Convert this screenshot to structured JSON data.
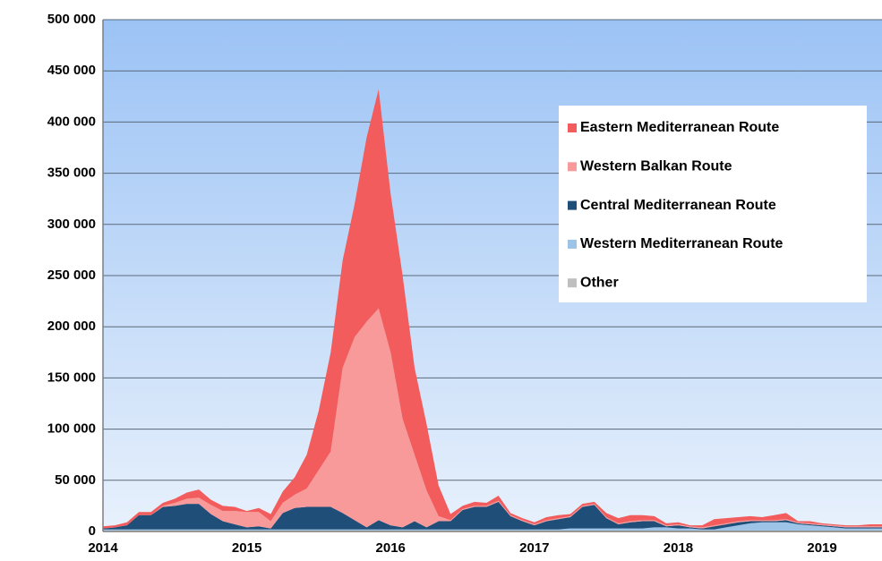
{
  "chart_data": {
    "type": "stacked_area",
    "categories": [
      "2014",
      null,
      null,
      null,
      null,
      null,
      null,
      null,
      null,
      null,
      null,
      null,
      "2015",
      null,
      null,
      null,
      null,
      null,
      null,
      null,
      null,
      null,
      null,
      null,
      "2016",
      null,
      null,
      null,
      null,
      null,
      null,
      null,
      null,
      null,
      null,
      null,
      "2017",
      null,
      null,
      null,
      null,
      null,
      null,
      null,
      null,
      null,
      null,
      null,
      "2018",
      null,
      null,
      null,
      null,
      null,
      null,
      null,
      null,
      null,
      null,
      null,
      "2019",
      null,
      null,
      null,
      null,
      null
    ],
    "ylim": [
      0,
      500000
    ],
    "yticks": [
      0,
      {
        "value": 50000,
        "label": "50 000"
      },
      {
        "value": 100000,
        "label": "100 000"
      },
      {
        "value": 150000,
        "label": "150 000"
      },
      {
        "value": 200000,
        "label": "200 000"
      },
      {
        "value": 250000,
        "label": "250 000"
      },
      {
        "value": 300000,
        "label": "300 000"
      },
      {
        "value": 350000,
        "label": "350 000"
      },
      {
        "value": 400000,
        "label": "400 000"
      },
      {
        "value": 450000,
        "label": "450 000"
      },
      {
        "value": 500000,
        "label": "500 000"
      }
    ],
    "grid": true,
    "legend": "upper right",
    "series": [
      {
        "name": "Eastern Mediterranean Route",
        "color": "#f25c5c",
        "values": [
          2000,
          2000,
          3000,
          3000,
          3000,
          3000,
          4000,
          6000,
          8000,
          5000,
          5000,
          4000,
          1000,
          4000,
          7000,
          11000,
          17000,
          33000,
          58000,
          97000,
          105000,
          130000,
          180000,
          214000,
          155000,
          140000,
          85000,
          65000,
          30000,
          6000,
          3000,
          4000,
          3000,
          5000,
          2000,
          2000,
          2000,
          3000,
          3000,
          2000,
          2000,
          2000,
          4000,
          5000,
          6000,
          5000,
          4000,
          2000,
          2000,
          1000,
          2000,
          6000,
          5000,
          4000,
          4000,
          3000,
          5000,
          6000,
          1000,
          2000,
          1000,
          1000,
          1000,
          1000,
          2000,
          2000
        ]
      },
      {
        "name": "Western Balkan Route",
        "color": "#f89a9a",
        "values": [
          0,
          0,
          0,
          0,
          0,
          1000,
          3000,
          5000,
          6000,
          9000,
          10000,
          13000,
          15000,
          14000,
          7000,
          10000,
          13000,
          18000,
          36000,
          54000,
          142000,
          179000,
          201000,
          207000,
          169000,
          106000,
          65000,
          36000,
          5000,
          1000,
          1000,
          1000,
          1000,
          1000,
          1000,
          1000,
          1000,
          1000,
          1000,
          1000,
          1000,
          1000,
          1000,
          1000,
          1000,
          1000,
          1000,
          1000,
          1000,
          1000,
          1000,
          1000,
          1000,
          1000,
          1000,
          1000,
          1000,
          1000,
          1000,
          1000,
          1000,
          1000,
          1000,
          1000,
          1000,
          1000
        ]
      },
      {
        "name": "Central Mediterranean Route",
        "color": "#1f4e79",
        "values": [
          1000,
          2000,
          4000,
          14000,
          14000,
          22000,
          23000,
          25000,
          25000,
          15000,
          8000,
          5000,
          2000,
          3000,
          1000,
          16000,
          21000,
          22000,
          22000,
          22000,
          16000,
          9000,
          2000,
          9000,
          4000,
          2000,
          8000,
          2000,
          8000,
          8000,
          19000,
          22000,
          22000,
          27000,
          13000,
          8000,
          4000,
          8000,
          10000,
          11000,
          21000,
          23000,
          10000,
          4000,
          6000,
          7000,
          6000,
          1000,
          3000,
          1000,
          1000,
          3000,
          3000,
          3000,
          2000,
          1000,
          1000,
          2000,
          1000,
          1000,
          1000,
          1000,
          1000,
          1000,
          1000,
          1000
        ]
      },
      {
        "name": "Western Mediterranean Route",
        "color": "#9dc3e6",
        "values": [
          1000,
          1000,
          1000,
          1000,
          1000,
          1000,
          1000,
          1000,
          1000,
          1000,
          1000,
          1000,
          1000,
          1000,
          1000,
          1000,
          1000,
          1000,
          1000,
          1000,
          1000,
          1000,
          1000,
          1000,
          1000,
          1000,
          1000,
          1000,
          1000,
          1000,
          1000,
          1000,
          1000,
          1000,
          1000,
          1000,
          1000,
          1000,
          1000,
          2000,
          2000,
          2000,
          2000,
          2000,
          2000,
          2000,
          3000,
          3000,
          2000,
          2000,
          1000,
          1000,
          3000,
          5000,
          7000,
          8000,
          8000,
          8000,
          6000,
          5000,
          4000,
          3000,
          2000,
          2000,
          2000,
          2000
        ]
      },
      {
        "name": "Other",
        "color": "#bfbfbf",
        "values": [
          1000,
          1000,
          1000,
          1000,
          1000,
          1000,
          1000,
          1000,
          1000,
          1000,
          1000,
          1000,
          1000,
          1000,
          1000,
          1000,
          1000,
          1000,
          1000,
          1000,
          1000,
          1000,
          1000,
          1000,
          1000,
          1000,
          1000,
          1000,
          1000,
          1000,
          1000,
          1000,
          1000,
          1000,
          1000,
          1000,
          1000,
          1000,
          1000,
          1000,
          1000,
          1000,
          1000,
          1000,
          1000,
          1000,
          1000,
          1000,
          1000,
          1000,
          1000,
          1000,
          1000,
          1000,
          1000,
          1000,
          1000,
          1000,
          1000,
          1000,
          1000,
          1000,
          1000,
          1000,
          1000,
          1000
        ]
      }
    ]
  }
}
